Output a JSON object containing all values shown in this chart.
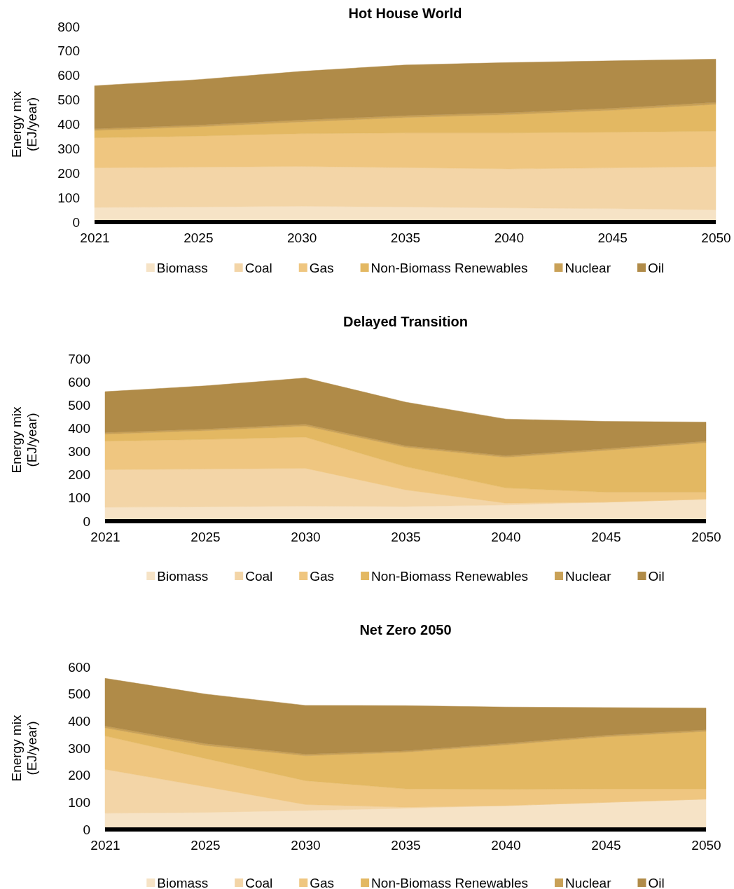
{
  "chart_data": [
    {
      "type": "area",
      "stacked": true,
      "title": "Hot House World",
      "ylabel": "Energy mix\n(EJ/year)",
      "categories": [
        "2021",
        "2025",
        "2030",
        "2035",
        "2040",
        "2045",
        "2050"
      ],
      "ylim": [
        0,
        800
      ],
      "yticks": [
        0,
        100,
        200,
        300,
        400,
        500,
        600,
        700,
        800
      ],
      "legend": "bottom",
      "series": [
        {
          "name": "Biomass",
          "color": "#f6e3c6",
          "values": [
            60,
            62,
            65,
            62,
            58,
            55,
            50
          ]
        },
        {
          "name": "Coal",
          "color": "#f3d5a7",
          "values": [
            162,
            163,
            163,
            161,
            160,
            167,
            177
          ]
        },
        {
          "name": "Gas",
          "color": "#efc680",
          "values": [
            123,
            127,
            134,
            142,
            147,
            146,
            145
          ]
        },
        {
          "name": "Non-Biomass Renewables",
          "color": "#e3b862",
          "values": [
            30,
            38,
            48,
            63,
            75,
            90,
            110
          ]
        },
        {
          "name": "Nuclear",
          "color": "#c9a157",
          "values": [
            7,
            7,
            8,
            8,
            8,
            8,
            8
          ]
        },
        {
          "name": "Oil",
          "color": "#b08b48",
          "values": [
            176,
            186,
            199,
            207,
            205,
            194,
            177
          ]
        }
      ]
    },
    {
      "type": "area",
      "stacked": true,
      "title": "Delayed Transition",
      "ylabel": "Energy mix\n(EJ/year)",
      "categories": [
        "2021",
        "2025",
        "2030",
        "2035",
        "2040",
        "2045",
        "2050"
      ],
      "ylim": [
        0,
        700
      ],
      "yticks": [
        0,
        100,
        200,
        300,
        400,
        500,
        600,
        700
      ],
      "legend": "bottom",
      "series": [
        {
          "name": "Biomass",
          "color": "#f6e3c6",
          "values": [
            60,
            62,
            65,
            63,
            70,
            82,
            95
          ]
        },
        {
          "name": "Coal",
          "color": "#f3d5a7",
          "values": [
            162,
            163,
            163,
            72,
            8,
            0,
            0
          ]
        },
        {
          "name": "Gas",
          "color": "#efc680",
          "values": [
            123,
            127,
            134,
            100,
            65,
            43,
            30
          ]
        },
        {
          "name": "Non-Biomass Renewables",
          "color": "#e3b862",
          "values": [
            30,
            38,
            48,
            83,
            132,
            180,
            213
          ]
        },
        {
          "name": "Nuclear",
          "color": "#c9a157",
          "values": [
            7,
            7,
            8,
            7,
            7,
            7,
            7
          ]
        },
        {
          "name": "Oil",
          "color": "#b08b48",
          "values": [
            176,
            186,
            199,
            188,
            158,
            118,
            82
          ]
        }
      ]
    },
    {
      "type": "area",
      "stacked": true,
      "title": "Net Zero 2050",
      "ylabel": "Energy mix\n(EJ/year)",
      "categories": [
        "2021",
        "2025",
        "2030",
        "2035",
        "2040",
        "2045",
        "2050"
      ],
      "ylim": [
        0,
        600
      ],
      "yticks": [
        0,
        100,
        200,
        300,
        400,
        500,
        600
      ],
      "legend": "bottom",
      "series": [
        {
          "name": "Biomass",
          "color": "#f6e3c6",
          "values": [
            60,
            63,
            70,
            78,
            88,
            100,
            112
          ]
        },
        {
          "name": "Coal",
          "color": "#f3d5a7",
          "values": [
            162,
            95,
            22,
            4,
            0,
            0,
            0
          ]
        },
        {
          "name": "Gas",
          "color": "#efc680",
          "values": [
            123,
            104,
            88,
            68,
            60,
            50,
            38
          ]
        },
        {
          "name": "Non-Biomass Renewables",
          "color": "#e3b862",
          "values": [
            30,
            48,
            92,
            135,
            164,
            192,
            212
          ]
        },
        {
          "name": "Nuclear",
          "color": "#c9a157",
          "values": [
            7,
            7,
            6,
            5,
            6,
            6,
            6
          ]
        },
        {
          "name": "Oil",
          "color": "#b08b48",
          "values": [
            176,
            183,
            180,
            167,
            134,
            102,
            80
          ]
        }
      ]
    }
  ]
}
